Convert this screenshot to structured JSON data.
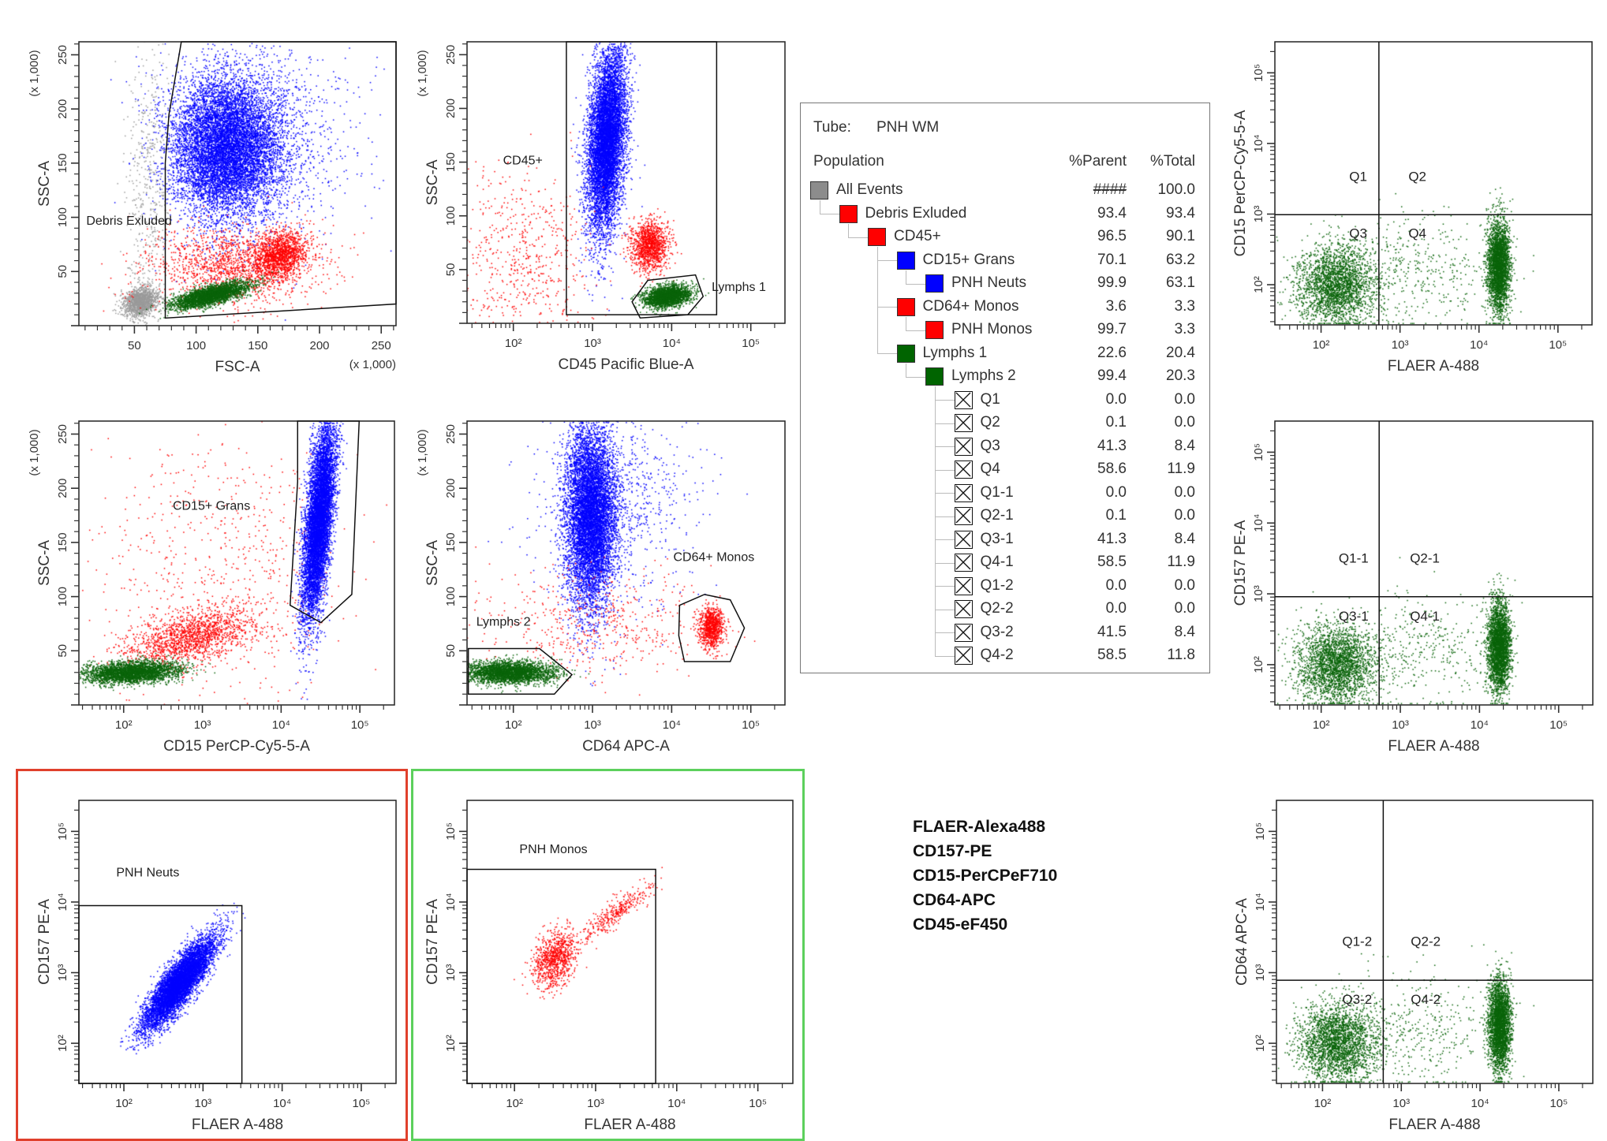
{
  "colors": {
    "grey": "#8c8c8c",
    "red": "#ff0000",
    "blue": "#0000ff",
    "green": "#006400",
    "red_frame": "#e0402c",
    "green_frame": "#5cd05c"
  },
  "population_table": {
    "tube_label": "Tube:",
    "tube_value": "PNH WM",
    "headers": {
      "population": "Population",
      "parent": "%Parent",
      "total": "%Total"
    },
    "rows": [
      {
        "name": "All Events",
        "level": 0,
        "icon": "gray-swatch",
        "color": "#8c8c8c",
        "parent": "####",
        "total": "100.0"
      },
      {
        "name": "Debris Exluded",
        "level": 1,
        "icon": "red-swatch",
        "color": "#ff0000",
        "parent": "93.4",
        "total": "93.4"
      },
      {
        "name": "CD45+",
        "level": 2,
        "icon": "red-swatch",
        "color": "#ff0000",
        "parent": "96.5",
        "total": "90.1"
      },
      {
        "name": "CD15+ Grans",
        "level": 3,
        "icon": "blue-swatch",
        "color": "#0000ff",
        "parent": "70.1",
        "total": "63.2"
      },
      {
        "name": "PNH Neuts",
        "level": 4,
        "icon": "blue-swatch",
        "color": "#0000ff",
        "parent": "99.9",
        "total": "63.1"
      },
      {
        "name": "CD64+ Monos",
        "level": 3,
        "icon": "red-swatch",
        "color": "#ff0000",
        "parent": "3.6",
        "total": "3.3"
      },
      {
        "name": "PNH Monos",
        "level": 4,
        "icon": "red-swatch",
        "color": "#ff0000",
        "parent": "99.7",
        "total": "3.3"
      },
      {
        "name": "Lymphs 1",
        "level": 3,
        "icon": "green-swatch",
        "color": "#006400",
        "parent": "22.6",
        "total": "20.4"
      },
      {
        "name": "Lymphs 2",
        "level": 4,
        "icon": "green-swatch",
        "color": "#006400",
        "parent": "99.4",
        "total": "20.3"
      },
      {
        "name": "Q1",
        "level": 5,
        "icon": "quadrant-x-box",
        "parent": "0.0",
        "total": "0.0"
      },
      {
        "name": "Q2",
        "level": 5,
        "icon": "quadrant-x-box",
        "parent": "0.1",
        "total": "0.0"
      },
      {
        "name": "Q3",
        "level": 5,
        "icon": "quadrant-x-box",
        "parent": "41.3",
        "total": "8.4"
      },
      {
        "name": "Q4",
        "level": 5,
        "icon": "quadrant-x-box",
        "parent": "58.6",
        "total": "11.9"
      },
      {
        "name": "Q1-1",
        "level": 5,
        "icon": "quadrant-x-box",
        "parent": "0.0",
        "total": "0.0"
      },
      {
        "name": "Q2-1",
        "level": 5,
        "icon": "quadrant-x-box",
        "parent": "0.1",
        "total": "0.0"
      },
      {
        "name": "Q3-1",
        "level": 5,
        "icon": "quadrant-x-box",
        "parent": "41.3",
        "total": "8.4"
      },
      {
        "name": "Q4-1",
        "level": 5,
        "icon": "quadrant-x-box",
        "parent": "58.5",
        "total": "11.9"
      },
      {
        "name": "Q1-2",
        "level": 5,
        "icon": "quadrant-x-box",
        "parent": "0.0",
        "total": "0.0"
      },
      {
        "name": "Q2-2",
        "level": 5,
        "icon": "quadrant-x-box",
        "parent": "0.0",
        "total": "0.0"
      },
      {
        "name": "Q3-2",
        "level": 5,
        "icon": "quadrant-x-box",
        "parent": "41.5",
        "total": "8.4"
      },
      {
        "name": "Q4-2",
        "level": 5,
        "icon": "quadrant-x-box",
        "parent": "58.5",
        "total": "11.8"
      }
    ]
  },
  "markers": [
    "FLAER-Alexa488",
    "CD157-PE",
    "CD15-PerCPeF710",
    "CD64-APC",
    "CD45-eF450"
  ],
  "chart_data": [
    {
      "id": "p1",
      "type": "scatter",
      "xlabel": "FSC-A",
      "ylabel": "SSC-A",
      "xaxis": {
        "scale": "linear",
        "range": [
          5,
          262
        ],
        "ticks": [
          50,
          100,
          150,
          200,
          250
        ],
        "tick_labels": [
          "50",
          "100",
          "150",
          "200",
          "250"
        ],
        "unit_label": "(x 1,000)"
      },
      "yaxis": {
        "scale": "linear",
        "range": [
          0,
          262
        ],
        "ticks": [
          50,
          100,
          150,
          200,
          250
        ],
        "tick_labels": [
          "50",
          "100",
          "150",
          "200",
          "250"
        ],
        "unit_label": "(x 1,000)"
      },
      "populations": [
        "All Events",
        "Debris Exluded",
        "CD15+ Grans",
        "CD64+ Monos",
        "Lymphs 1"
      ],
      "gates": [
        {
          "label": "Debris Exluded",
          "points": [
            [
              75,
              7
            ],
            [
              75,
              150
            ],
            [
              78,
              195
            ],
            [
              88,
              262
            ],
            [
              262,
              262
            ],
            [
              262,
              20
            ]
          ],
          "label_at": [
            11,
            93
          ]
        }
      ]
    },
    {
      "id": "p2",
      "type": "scatter",
      "xlabel": "CD45 Pacific Blue-A",
      "ylabel": "SSC-A",
      "xaxis": {
        "scale": "log",
        "range": [
          26,
          270000
        ],
        "ticks": [
          100,
          1000,
          10000,
          100000
        ],
        "tick_labels": [
          "10²",
          "10³",
          "10⁴",
          "10⁵"
        ]
      },
      "yaxis": {
        "scale": "linear",
        "range": [
          0,
          262
        ],
        "ticks": [
          50,
          100,
          150,
          200,
          250
        ],
        "tick_labels": [
          "50",
          "100",
          "150",
          "200",
          "250"
        ],
        "unit_label": "(x 1,000)"
      },
      "gates": [
        {
          "label": "CD45+",
          "points": [
            [
              468,
              8
            ],
            [
              468,
              262
            ],
            [
              37000,
              262
            ],
            [
              37000,
              8
            ]
          ],
          "label_at": [
            74,
            148
          ]
        },
        {
          "label": "Lymphs 1",
          "points": [
            [
              3160,
              20
            ],
            [
              5000,
              40
            ],
            [
              20000,
              45
            ],
            [
              25000,
              25
            ],
            [
              16000,
              8
            ],
            [
              4000,
              5
            ]
          ],
          "label_at": [
            32000,
            30
          ]
        }
      ]
    },
    {
      "id": "p3",
      "type": "scatter",
      "xlabel": "FLAER A-488",
      "ylabel": "CD15 PerCP-Cy5-5-A",
      "xaxis": {
        "scale": "log",
        "range": [
          26,
          270000
        ],
        "ticks": [
          100,
          1000,
          10000,
          100000
        ],
        "tick_labels": [
          "10²",
          "10³",
          "10⁴",
          "10⁵"
        ]
      },
      "yaxis": {
        "scale": "log",
        "range": [
          27,
          275000
        ],
        "ticks": [
          100,
          1000,
          10000,
          100000
        ],
        "tick_labels": [
          "10²",
          "10³",
          "10⁴",
          "10⁵"
        ]
      },
      "quadrant": {
        "x": 540,
        "y": 980,
        "labels": [
          {
            "text": "Q1",
            "at": [
              295,
              2950
            ]
          },
          {
            "text": "Q2",
            "at": [
              1660,
              2950
            ]
          },
          {
            "text": "Q3",
            "at": [
              295,
              460
            ]
          },
          {
            "text": "Q4",
            "at": [
              1660,
              460
            ]
          }
        ]
      }
    },
    {
      "id": "p4",
      "type": "scatter",
      "xlabel": "CD15 PerCP-Cy5-5-A",
      "ylabel": "SSC-A",
      "xaxis": {
        "scale": "log",
        "range": [
          27,
          275000
        ],
        "ticks": [
          100,
          1000,
          10000,
          100000
        ],
        "tick_labels": [
          "10²",
          "10³",
          "10⁴",
          "10⁵"
        ]
      },
      "yaxis": {
        "scale": "linear",
        "range": [
          0,
          262
        ],
        "ticks": [
          50,
          100,
          150,
          200,
          250
        ],
        "tick_labels": [
          "50",
          "100",
          "150",
          "200",
          "250"
        ],
        "unit_label": "(x 1,000)"
      },
      "gates": [
        {
          "label": "CD15+ Grans",
          "points": [
            [
              16200,
              262
            ],
            [
              98000,
              262
            ],
            [
              79000,
              102
            ],
            [
              32000,
              76
            ],
            [
              13000,
              92
            ],
            [
              16200,
              206
            ]
          ],
          "label_at": [
            420,
            180
          ]
        }
      ]
    },
    {
      "id": "p5",
      "type": "scatter",
      "xlabel": "CD64 APC-A",
      "ylabel": "SSC-A",
      "xaxis": {
        "scale": "log",
        "range": [
          26,
          270000
        ],
        "ticks": [
          100,
          1000,
          10000,
          100000
        ],
        "tick_labels": [
          "10²",
          "10³",
          "10⁴",
          "10⁵"
        ]
      },
      "yaxis": {
        "scale": "linear",
        "range": [
          0,
          262
        ],
        "ticks": [
          50,
          100,
          150,
          200,
          250
        ],
        "tick_labels": [
          "50",
          "100",
          "150",
          "200",
          "250"
        ],
        "unit_label": "(x 1,000)"
      },
      "gates": [
        {
          "label": "CD64+ Monos",
          "points": [
            [
              12600,
              92
            ],
            [
              26000,
              102
            ],
            [
              55000,
              97
            ],
            [
              83000,
              71
            ],
            [
              55000,
              40
            ],
            [
              14500,
              40
            ],
            [
              12300,
              64
            ]
          ],
          "label_at": [
            10500,
            133
          ]
        },
        {
          "label": "Lymphs 2",
          "points": [
            [
              27,
              52
            ],
            [
              214,
              52
            ],
            [
              550,
              28
            ],
            [
              330,
              10
            ],
            [
              27,
              10
            ]
          ],
          "label_at": [
            34,
            73
          ]
        }
      ]
    },
    {
      "id": "p6",
      "type": "scatter",
      "xlabel": "FLAER A-488",
      "ylabel": "CD157 PE-A",
      "xaxis": {
        "scale": "log",
        "range": [
          26,
          270000
        ],
        "ticks": [
          100,
          1000,
          10000,
          100000
        ],
        "tick_labels": [
          "10²",
          "10³",
          "10⁴",
          "10⁵"
        ]
      },
      "yaxis": {
        "scale": "log",
        "range": [
          27,
          275000
        ],
        "ticks": [
          100,
          1000,
          10000,
          100000
        ],
        "tick_labels": [
          "10²",
          "10³",
          "10⁴",
          "10⁵"
        ]
      },
      "quadrant": {
        "x": 540,
        "y": 910,
        "labels": [
          {
            "text": "Q1-1",
            "at": [
              257,
              2750
            ]
          },
          {
            "text": "Q2-1",
            "at": [
              2040,
              2750
            ]
          },
          {
            "text": "Q3-1",
            "at": [
              257,
              420
            ]
          },
          {
            "text": "Q4-1",
            "at": [
              2040,
              420
            ]
          }
        ]
      }
    },
    {
      "id": "p7",
      "type": "scatter",
      "xlabel": "FLAER A-488",
      "ylabel": "CD157 PE-A",
      "xaxis": {
        "scale": "log",
        "range": [
          27,
          275000
        ],
        "ticks": [
          100,
          1000,
          10000,
          100000
        ],
        "tick_labels": [
          "10²",
          "10³",
          "10⁴",
          "10⁵"
        ]
      },
      "yaxis": {
        "scale": "log",
        "range": [
          27,
          275000
        ],
        "ticks": [
          100,
          1000,
          10000,
          100000
        ],
        "tick_labels": [
          "10²",
          "10³",
          "10⁴",
          "10⁵"
        ]
      },
      "gates": [
        {
          "label": "PNH Neuts",
          "points": [
            [
              27,
              27
            ],
            [
              27,
              8900
            ],
            [
              3100,
              8900
            ],
            [
              3100,
              27
            ]
          ],
          "label_at": [
            80,
            23000
          ]
        }
      ]
    },
    {
      "id": "p8",
      "type": "scatter",
      "xlabel": "FLAER A-488",
      "ylabel": "CD157 PE-A",
      "xaxis": {
        "scale": "log",
        "range": [
          26,
          270000
        ],
        "ticks": [
          100,
          1000,
          10000,
          100000
        ],
        "tick_labels": [
          "10²",
          "10³",
          "10⁴",
          "10⁵"
        ]
      },
      "yaxis": {
        "scale": "log",
        "range": [
          27,
          275000
        ],
        "ticks": [
          100,
          1000,
          10000,
          100000
        ],
        "tick_labels": [
          "10²",
          "10³",
          "10⁴",
          "10⁵"
        ]
      },
      "gates": [
        {
          "label": "PNH Monos",
          "points": [
            [
              26,
              27
            ],
            [
              26,
              29000
            ],
            [
              5500,
              29000
            ],
            [
              5500,
              27
            ]
          ],
          "label_at": [
            115,
            49000
          ]
        }
      ]
    },
    {
      "id": "p9",
      "type": "scatter",
      "xlabel": "FLAER A-488",
      "ylabel": "CD64 APC-A",
      "xaxis": {
        "scale": "log",
        "range": [
          26,
          270000
        ],
        "ticks": [
          100,
          1000,
          10000,
          100000
        ],
        "tick_labels": [
          "10²",
          "10³",
          "10⁴",
          "10⁵"
        ]
      },
      "yaxis": {
        "scale": "log",
        "range": [
          27,
          275000
        ],
        "ticks": [
          100,
          1000,
          10000,
          100000
        ],
        "tick_labels": [
          "10²",
          "10³",
          "10⁴",
          "10⁵"
        ]
      },
      "quadrant": {
        "x": 590,
        "y": 780,
        "labels": [
          {
            "text": "Q1-2",
            "at": [
              275,
              2400
            ]
          },
          {
            "text": "Q2-2",
            "at": [
              2040,
              2400
            ]
          },
          {
            "text": "Q3-2",
            "at": [
              275,
              360
            ]
          },
          {
            "text": "Q4-2",
            "at": [
              2040,
              360
            ]
          }
        ]
      }
    }
  ]
}
